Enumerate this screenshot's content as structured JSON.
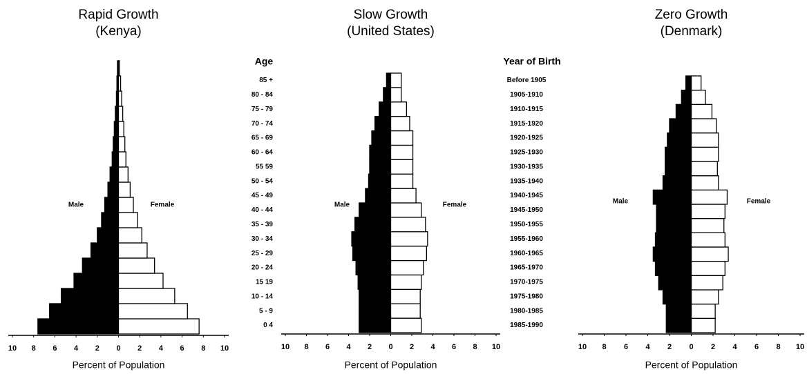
{
  "chart_data": [
    {
      "type": "pyramid",
      "title": "Rapid Growth",
      "subtitle": "(Kenya)",
      "xlabel": "Percent of Population",
      "xlim": [
        -10,
        10
      ],
      "xticks": [
        {
          "value": -10,
          "label": "10"
        },
        {
          "value": -8,
          "label": "8"
        },
        {
          "value": -6,
          "label": "6"
        },
        {
          "value": -4,
          "label": "4"
        },
        {
          "value": -2,
          "label": "2"
        },
        0,
        2,
        4,
        6,
        8,
        10
      ],
      "series": [
        {
          "name": "Male",
          "color": "#000000",
          "side": "left",
          "values": [
            7.6,
            6.5,
            5.4,
            4.2,
            3.4,
            2.6,
            2.0,
            1.6,
            1.3,
            1.0,
            0.8,
            0.6,
            0.5,
            0.4,
            0.3,
            0.2,
            0.15,
            0.1
          ]
        },
        {
          "name": "Female",
          "color": "#ffffff",
          "side": "right",
          "values": [
            7.6,
            6.5,
            5.3,
            4.2,
            3.4,
            2.7,
            2.2,
            1.8,
            1.4,
            1.1,
            0.9,
            0.7,
            0.6,
            0.5,
            0.4,
            0.3,
            0.2,
            0.1
          ]
        }
      ]
    },
    {
      "type": "pyramid",
      "title": "Slow Growth",
      "subtitle": "(United States)",
      "xlabel": "Percent of Population",
      "xlim": [
        -10,
        10
      ],
      "xticks": [
        {
          "value": -10,
          "label": "10"
        },
        {
          "value": -8,
          "label": "8"
        },
        {
          "value": -6,
          "label": "6"
        },
        {
          "value": -4,
          "label": "4"
        },
        {
          "value": -2,
          "label": "2"
        },
        0,
        2,
        4,
        6,
        8,
        10
      ],
      "category_label": "Age",
      "categories": [
        "0 4",
        "5 - 9",
        "10 - 14",
        "15 19",
        "20 - 24",
        "25 - 29",
        "30 - 34",
        "35 - 39",
        "40 - 44",
        "45 - 49",
        "50 - 54",
        "55 59",
        "60 - 64",
        "65 - 69",
        "70 - 74",
        "75 - 79",
        "80 - 84",
        "85 +"
      ],
      "birth_year_label": "Year of Birth",
      "birth_years": [
        "1985-1990",
        "1980-1985",
        "1975-1980",
        "1970-1975",
        "1965-1970",
        "1960-1965",
        "1955-1960",
        "1950-1955",
        "1945-1950",
        "1940-1945",
        "1935-1940",
        "1930-1935",
        "1925-1930",
        "1920-1925",
        "1915-1920",
        "1910-1915",
        "1905-1910",
        "Before 1905"
      ],
      "series": [
        {
          "name": "Male",
          "color": "#000000",
          "side": "left",
          "values": [
            3.0,
            3.0,
            3.0,
            3.1,
            3.3,
            3.6,
            3.7,
            3.4,
            3.0,
            2.4,
            2.1,
            2.0,
            2.0,
            1.8,
            1.5,
            1.1,
            0.7,
            0.4
          ]
        },
        {
          "name": "Female",
          "color": "#ffffff",
          "side": "right",
          "values": [
            2.9,
            2.8,
            2.8,
            2.9,
            3.1,
            3.4,
            3.5,
            3.3,
            2.9,
            2.4,
            2.1,
            2.1,
            2.1,
            2.1,
            1.8,
            1.5,
            1.0,
            1.0
          ]
        }
      ]
    },
    {
      "type": "pyramid",
      "title": "Zero Growth",
      "subtitle": "(Denmark)",
      "xlabel": "Percent of Population",
      "xlim": [
        -10,
        10
      ],
      "xticks": [
        {
          "value": -10,
          "label": "10"
        },
        {
          "value": -8,
          "label": "8"
        },
        {
          "value": -6,
          "label": "6"
        },
        {
          "value": -4,
          "label": "4"
        },
        {
          "value": -2,
          "label": "2"
        },
        0,
        2,
        4,
        6,
        8,
        10
      ],
      "series": [
        {
          "name": "Male",
          "color": "#000000",
          "side": "left",
          "values": [
            2.3,
            2.3,
            2.6,
            3.0,
            3.3,
            3.5,
            3.3,
            3.2,
            3.2,
            3.5,
            2.6,
            2.4,
            2.4,
            2.2,
            2.0,
            1.4,
            0.9,
            0.5
          ]
        },
        {
          "name": "Female",
          "color": "#ffffff",
          "side": "right",
          "values": [
            2.2,
            2.2,
            2.5,
            2.9,
            3.1,
            3.4,
            3.1,
            3.0,
            3.1,
            3.3,
            2.5,
            2.4,
            2.5,
            2.5,
            2.3,
            1.9,
            1.3,
            0.9
          ]
        }
      ]
    }
  ]
}
